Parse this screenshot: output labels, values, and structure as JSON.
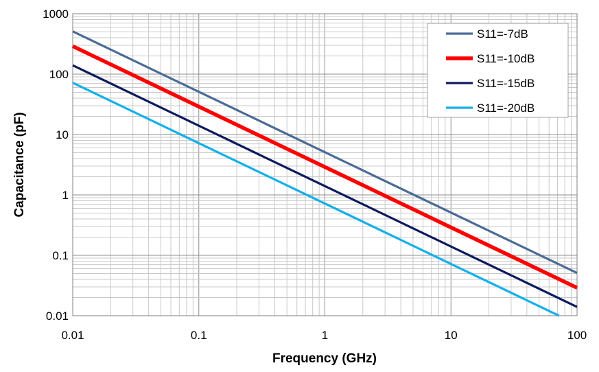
{
  "chart_data": {
    "type": "line",
    "title": "",
    "xlabel": "Frequency (GHz)",
    "ylabel": "Capacitance (pF)",
    "x_scale": "log",
    "y_scale": "log",
    "xlim": [
      0.01,
      100
    ],
    "ylim": [
      0.01,
      1000
    ],
    "x_ticks": [
      "0.01",
      "0.1",
      "1",
      "10",
      "100"
    ],
    "y_ticks": [
      "0.01",
      "0.1",
      "1",
      "10",
      "100",
      "1000"
    ],
    "grid": true,
    "legend_position": "top-right",
    "series": [
      {
        "name": "S11=-7dB",
        "color": "#4a6b96",
        "line_width": "medium",
        "x": [
          0.01,
          100
        ],
        "y": [
          510,
          0.051
        ]
      },
      {
        "name": "S11=-10dB",
        "color": "#ff0000",
        "line_width": "thick",
        "x": [
          0.01,
          100
        ],
        "y": [
          290,
          0.029
        ]
      },
      {
        "name": "S11=-15dB",
        "color": "#0d1a5c",
        "line_width": "medium",
        "x": [
          0.01,
          100
        ],
        "y": [
          140,
          0.014
        ]
      },
      {
        "name": "S11=-20dB",
        "color": "#11b0ea",
        "line_width": "medium",
        "x": [
          0.01,
          72
        ],
        "y": [
          72,
          0.01
        ]
      }
    ]
  }
}
